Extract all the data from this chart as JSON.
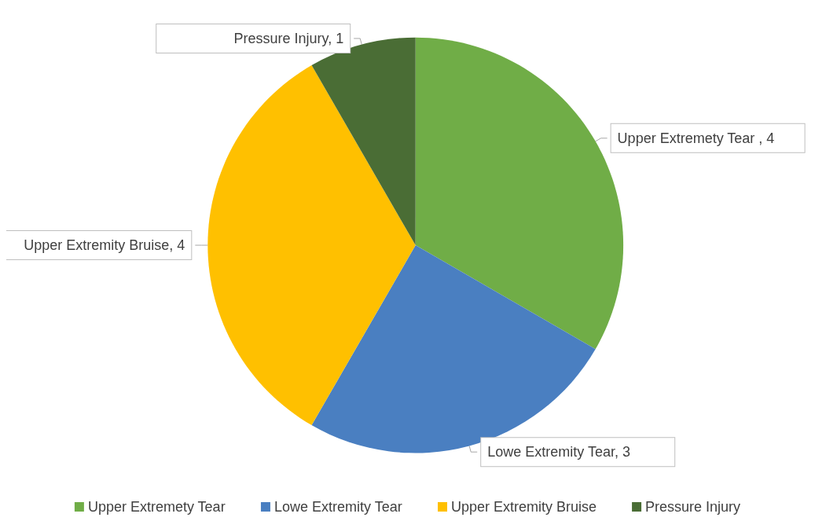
{
  "chart_data": {
    "type": "pie",
    "categories": [
      "Upper Extremety Tear",
      "Lowe Extremity Tear",
      "Upper Extremity Bruise",
      "Pressure Injury"
    ],
    "values": [
      4,
      3,
      4,
      1
    ],
    "colors": [
      "#70ad47",
      "#4a7fc1",
      "#ffc000",
      "#4a6d35"
    ],
    "value_labels": [
      "Upper Extremety Tear , 4",
      "Lowe Extremity Tear, 3",
      "Upper Extremity Bruise, 4",
      "Pressure Injury, 1"
    ],
    "legend": "bottom"
  }
}
